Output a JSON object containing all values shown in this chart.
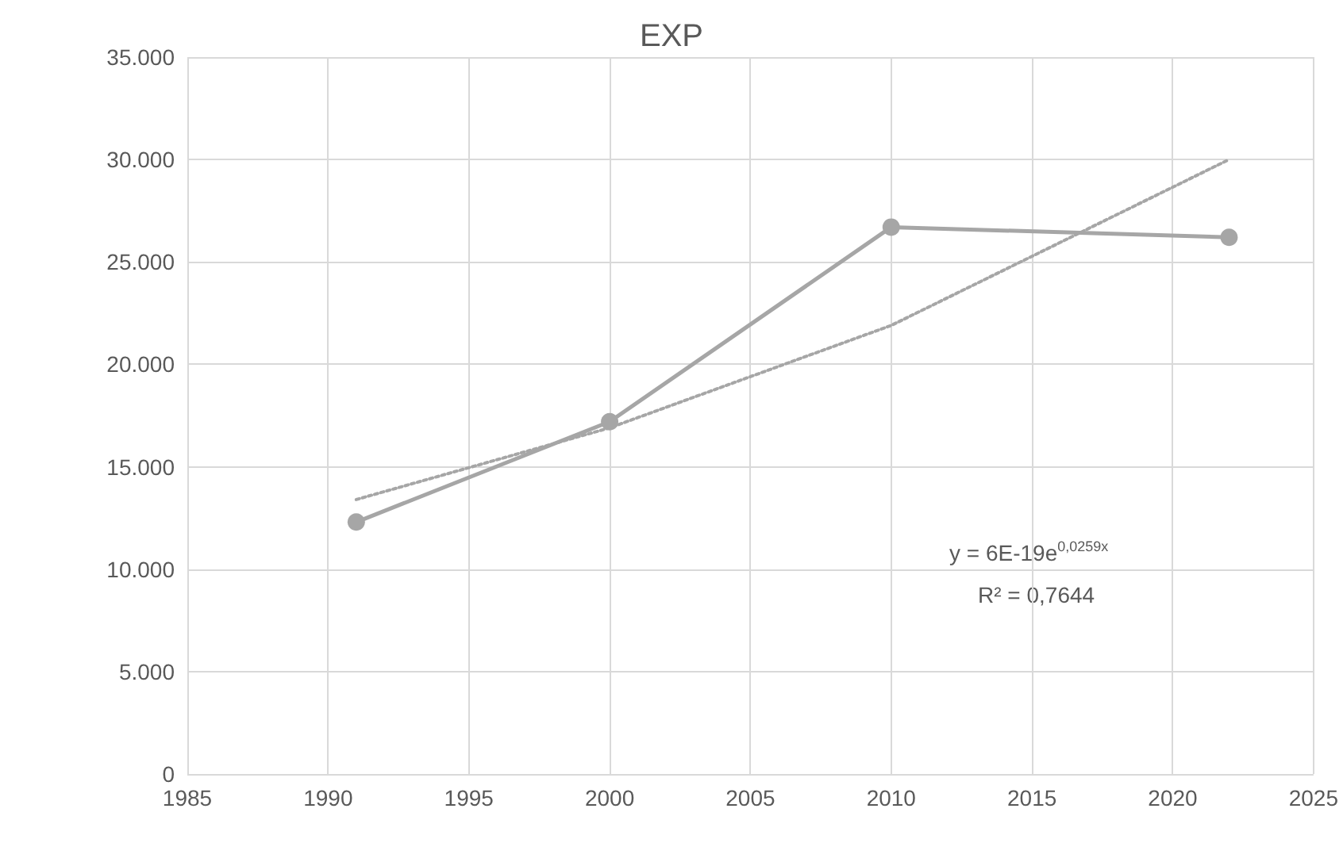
{
  "chart_data": {
    "type": "line",
    "title": "EXP",
    "x": [
      1991,
      2000,
      2010,
      2022
    ],
    "series": [
      {
        "color": "#a6a6a6",
        "values": [
          12300,
          17200,
          26700,
          26200
        ],
        "marker": "circle",
        "line_style": "solid"
      },
      {
        "color": "#a6a6a6",
        "values": [
          13400,
          16900,
          21900,
          30000
        ],
        "marker": "none",
        "line_style": "dotted"
      }
    ],
    "xlim": [
      1985,
      2025
    ],
    "xticks": [
      1985,
      1990,
      1995,
      2000,
      2005,
      2010,
      2015,
      2020,
      2025
    ],
    "ylim": [
      0,
      35000
    ],
    "yticks": [
      0,
      {
        "value": 5000,
        "label": "5.000"
      },
      {
        "value": 10000,
        "label": "10.000"
      },
      {
        "value": 15000,
        "label": "15.000"
      },
      {
        "value": 20000,
        "label": "20.000"
      },
      {
        "value": 25000,
        "label": "25.000"
      },
      {
        "value": 30000,
        "label": "30.000"
      },
      {
        "value": 35000,
        "label": "35.000"
      }
    ],
    "grid": true,
    "annotations": [
      "y = 6E-19e$^{0,0259x}$",
      "R² = 0,7644"
    ]
  }
}
